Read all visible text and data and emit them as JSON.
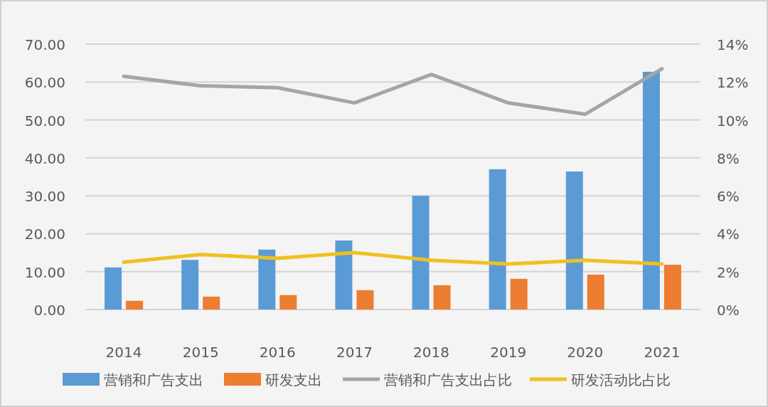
{
  "chart_data": {
    "type": "bar",
    "categories": [
      "2014",
      "2015",
      "2016",
      "2017",
      "2018",
      "2019",
      "2020",
      "2021"
    ],
    "series": [
      {
        "name": "营销和广告支出",
        "color": "#5b9bd5",
        "values": [
          11.1,
          13.1,
          15.8,
          18.2,
          30.0,
          37.0,
          36.4,
          62.7
        ]
      },
      {
        "name": "研发支出",
        "color": "#ed7d31",
        "values": [
          2.3,
          3.4,
          3.8,
          5.1,
          6.4,
          8.1,
          9.2,
          11.8
        ]
      },
      {
        "name": "营销和广告支出占比",
        "type": "line",
        "axis": "y2",
        "color": "#a5a5a5",
        "values": [
          12.3,
          11.8,
          11.7,
          10.9,
          12.4,
          10.9,
          10.3,
          12.7
        ]
      },
      {
        "name": "研发活动比占比",
        "type": "line",
        "axis": "y2",
        "color": "#f0c020",
        "values": [
          2.5,
          2.9,
          2.7,
          3.0,
          2.6,
          2.4,
          2.6,
          2.4
        ]
      }
    ],
    "ylim": [
      0,
      70
    ],
    "yticks": [
      {
        "value": 0,
        "label": "0.00"
      },
      {
        "value": 10,
        "label": "10.00"
      },
      {
        "value": 20,
        "label": "20.00"
      },
      {
        "value": 30,
        "label": "30.00"
      },
      {
        "value": 40,
        "label": "40.00"
      },
      {
        "value": 50,
        "label": "50.00"
      },
      {
        "value": 60,
        "label": "60.00"
      },
      {
        "value": 70,
        "label": "70.00"
      }
    ],
    "y2lim": [
      0,
      14
    ],
    "y2ticks": [
      {
        "value": 0,
        "label": "0%"
      },
      {
        "value": 2,
        "label": "2%"
      },
      {
        "value": 4,
        "label": "4%"
      },
      {
        "value": 6,
        "label": "6%"
      },
      {
        "value": 8,
        "label": "8%"
      },
      {
        "value": 10,
        "label": "10%"
      },
      {
        "value": 12,
        "label": "12%"
      },
      {
        "value": 14,
        "label": "14%"
      }
    ],
    "grid": "y",
    "legend": "bottom",
    "marker": "none",
    "line_style": "solid"
  }
}
